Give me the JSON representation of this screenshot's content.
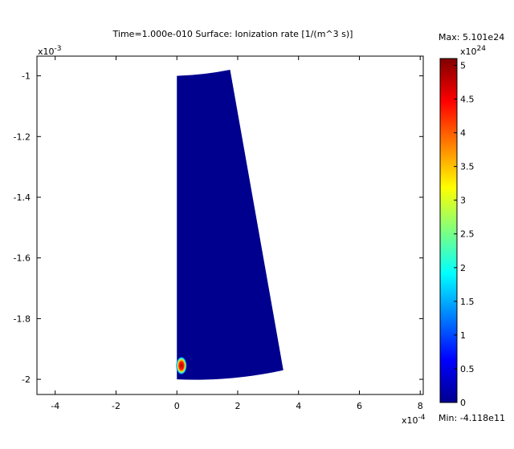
{
  "chart_data": {
    "type": "heatmap",
    "title": "Time=1.000e-010    Surface: Ionization rate [1/(m^3 s)]",
    "x_axis": {
      "range": [
        -4.6,
        8.1
      ],
      "ticks": [
        -4,
        -2,
        0,
        2,
        4,
        6,
        8
      ],
      "tick_labels": [
        "-4",
        "-2",
        "0",
        "2",
        "4",
        "6",
        "8"
      ],
      "multiplier_base": "x10",
      "multiplier_exp": "-4"
    },
    "y_axis": {
      "range": [
        -2.05,
        -0.935
      ],
      "ticks": [
        -1,
        -1.2,
        -1.4,
        -1.6,
        -1.8,
        -2
      ],
      "tick_labels": [
        "-1",
        "-1.2",
        "-1.4",
        "-1.6",
        "-1.8",
        "-2"
      ],
      "multiplier_base": "x10",
      "multiplier_exp": "-3"
    },
    "domain_outline": [
      [
        0,
        -1.0
      ],
      [
        1.75,
        -0.98
      ],
      [
        3.5,
        -1.97
      ],
      [
        0,
        -2.0
      ]
    ],
    "domain_value_colors": {
      "low": "#00008f",
      "hot": "#c00000"
    },
    "hot_spot": {
      "x": 0.15,
      "y": -1.955,
      "radius_x": 0.18,
      "radius_y": 0.03,
      "value": 5.101
    },
    "colorbar": {
      "max_label": "Max: 5.101e24",
      "min_label": "Min: -4.118e11",
      "multiplier_base": "x10",
      "multiplier_exp": "24",
      "range": [
        0,
        5.101
      ],
      "ticks": [
        0,
        0.5,
        1,
        1.5,
        2,
        2.5,
        3,
        3.5,
        4,
        4.5,
        5
      ],
      "tick_labels": [
        "0",
        "0.5",
        "1",
        "1.5",
        "2",
        "2.5",
        "3",
        "3.5",
        "4",
        "4.5",
        "5"
      ],
      "colormap": "jet"
    },
    "grid": false,
    "legend": "right colorbar"
  }
}
